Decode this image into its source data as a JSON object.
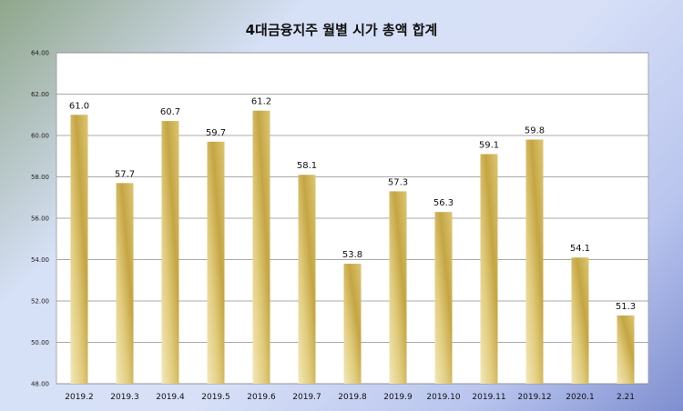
{
  "chart_data": {
    "type": "bar",
    "title": "4대금융지주 월별 시가 총액 합계",
    "xlabel": "",
    "ylabel": "",
    "categories": [
      "2019.2",
      "2019.3",
      "2019.4",
      "2019.5",
      "2019.6",
      "2019.7",
      "2019.8",
      "2019.9",
      "2019.10",
      "2019.11",
      "2019.12",
      "2020.1",
      "2.21"
    ],
    "values": [
      61.0,
      57.7,
      60.7,
      59.7,
      61.2,
      58.1,
      53.8,
      57.3,
      56.3,
      59.1,
      59.8,
      54.1,
      51.3
    ],
    "data_labels": [
      "61.0",
      "57.7",
      "60.7",
      "59.7",
      "61.2",
      "58.1",
      "53.8",
      "57.3",
      "56.3",
      "59.1",
      "59.8",
      "54.1",
      "51.3"
    ],
    "ylim": [
      48,
      64
    ],
    "yticks": [
      "48.00",
      "50.00",
      "52.00",
      "54.00",
      "56.00",
      "58.00",
      "60.00",
      "62.00",
      "64.00"
    ],
    "grid": true,
    "legend": "none",
    "colors": {
      "bar_light": "#f2e6b2",
      "bar_dark": "#c2a440",
      "grid": "#8c8c8c",
      "plot_bg": "#ffffff"
    }
  }
}
